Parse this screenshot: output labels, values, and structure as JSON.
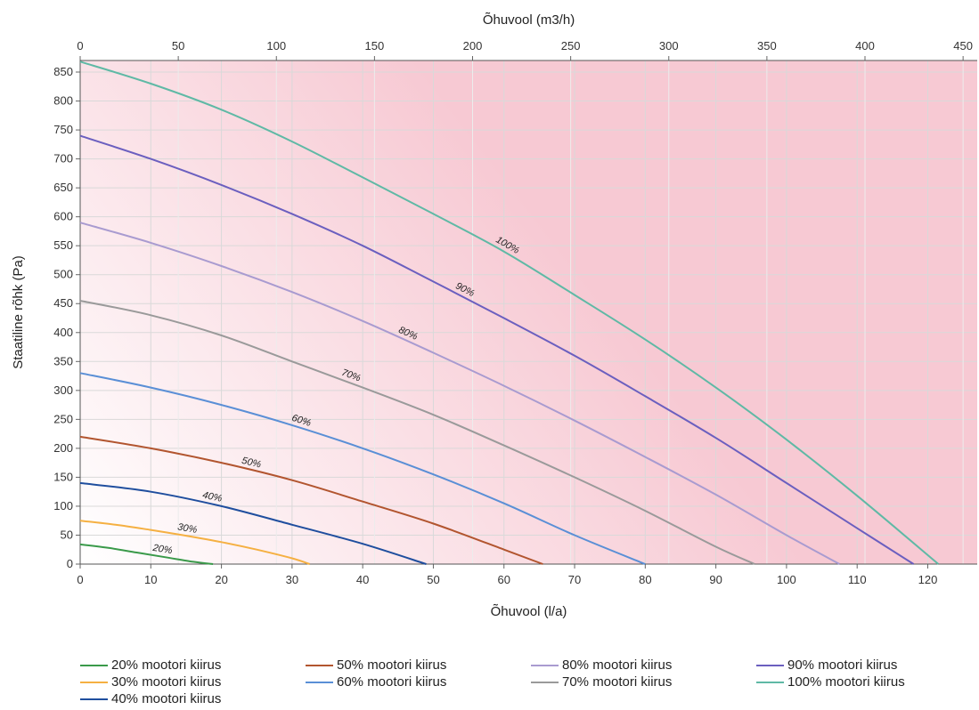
{
  "chart_data": {
    "type": "line",
    "xlabel": "Õhuvool (l/a)",
    "x2label": "Õhuvool (m3/h)",
    "ylabel": "Staatiline rõhk (Pa)",
    "xlim": [
      0,
      127
    ],
    "x2lim": [
      0,
      457.2
    ],
    "ylim": [
      0,
      870
    ],
    "xticks": [
      0,
      10,
      20,
      30,
      40,
      50,
      60,
      70,
      80,
      90,
      100,
      110,
      120
    ],
    "x2ticks": [
      0,
      50,
      100,
      150,
      200,
      250,
      300,
      350,
      400,
      450
    ],
    "yticks": [
      0,
      50,
      100,
      150,
      200,
      250,
      300,
      350,
      400,
      450,
      500,
      550,
      600,
      650,
      700,
      750,
      800,
      850
    ],
    "grid": true,
    "legend_position": "bottom",
    "series": [
      {
        "name": "20% mootori kiirus",
        "label": "20%",
        "color": "#3a9a4a",
        "label_x": 11.5,
        "x": [
          0,
          4,
          8,
          12,
          16,
          18.8
        ],
        "y": [
          34,
          28,
          20,
          12,
          4,
          0
        ]
      },
      {
        "name": "30% mootori kiirus",
        "label": "30%",
        "color": "#f5b042",
        "label_x": 15,
        "x": [
          0,
          5,
          10,
          15,
          20,
          25,
          30,
          32.5
        ],
        "y": [
          75,
          68,
          59,
          49,
          38,
          25,
          10,
          0
        ]
      },
      {
        "name": "40% mootori kiirus",
        "label": "40%",
        "color": "#1f4e9e",
        "label_x": 18.5,
        "x": [
          0,
          10,
          20,
          30,
          40,
          49
        ],
        "y": [
          140,
          125,
          100,
          68,
          35,
          0
        ]
      },
      {
        "name": "50% mootori kiirus",
        "label": "50%",
        "color": "#b2552f",
        "label_x": 24,
        "x": [
          0,
          10,
          20,
          30,
          40,
          50,
          60,
          65.5
        ],
        "y": [
          220,
          200,
          175,
          145,
          108,
          70,
          25,
          0
        ]
      },
      {
        "name": "60% mootori kiirus",
        "label": "60%",
        "color": "#5a8fd6",
        "label_x": 31,
        "x": [
          0,
          10,
          20,
          30,
          40,
          50,
          60,
          70,
          80
        ],
        "y": [
          330,
          305,
          275,
          240,
          200,
          155,
          105,
          50,
          0
        ]
      },
      {
        "name": "70% mootori kiirus",
        "label": "70%",
        "color": "#9a9a9a",
        "label_x": 38,
        "x": [
          0,
          10,
          20,
          30,
          40,
          50,
          60,
          70,
          80,
          90,
          95.5
        ],
        "y": [
          455,
          430,
          395,
          350,
          305,
          258,
          205,
          150,
          92,
          30,
          0
        ]
      },
      {
        "name": "80% mootori kiirus",
        "label": "80%",
        "color": "#a99bd0",
        "label_x": 46,
        "x": [
          0,
          10,
          20,
          30,
          40,
          50,
          60,
          70,
          80,
          90,
          100,
          107.5
        ],
        "y": [
          590,
          555,
          515,
          470,
          420,
          365,
          308,
          248,
          185,
          120,
          50,
          0
        ]
      },
      {
        "name": "90% mootori kiirus",
        "label": "90%",
        "color": "#6b5fbf",
        "label_x": 54,
        "x": [
          0,
          10,
          20,
          30,
          40,
          50,
          60,
          70,
          80,
          90,
          100,
          110,
          118
        ],
        "y": [
          740,
          700,
          655,
          605,
          550,
          488,
          425,
          360,
          290,
          218,
          140,
          62,
          0
        ]
      },
      {
        "name": "100% mootori kiirus",
        "label": "100%",
        "color": "#5fb9a5",
        "label_x": 60,
        "x": [
          0,
          10,
          20,
          30,
          40,
          50,
          60,
          70,
          80,
          90,
          100,
          110,
          121.5
        ],
        "y": [
          868,
          830,
          785,
          730,
          668,
          605,
          540,
          465,
          388,
          305,
          215,
          118,
          0
        ]
      }
    ]
  }
}
